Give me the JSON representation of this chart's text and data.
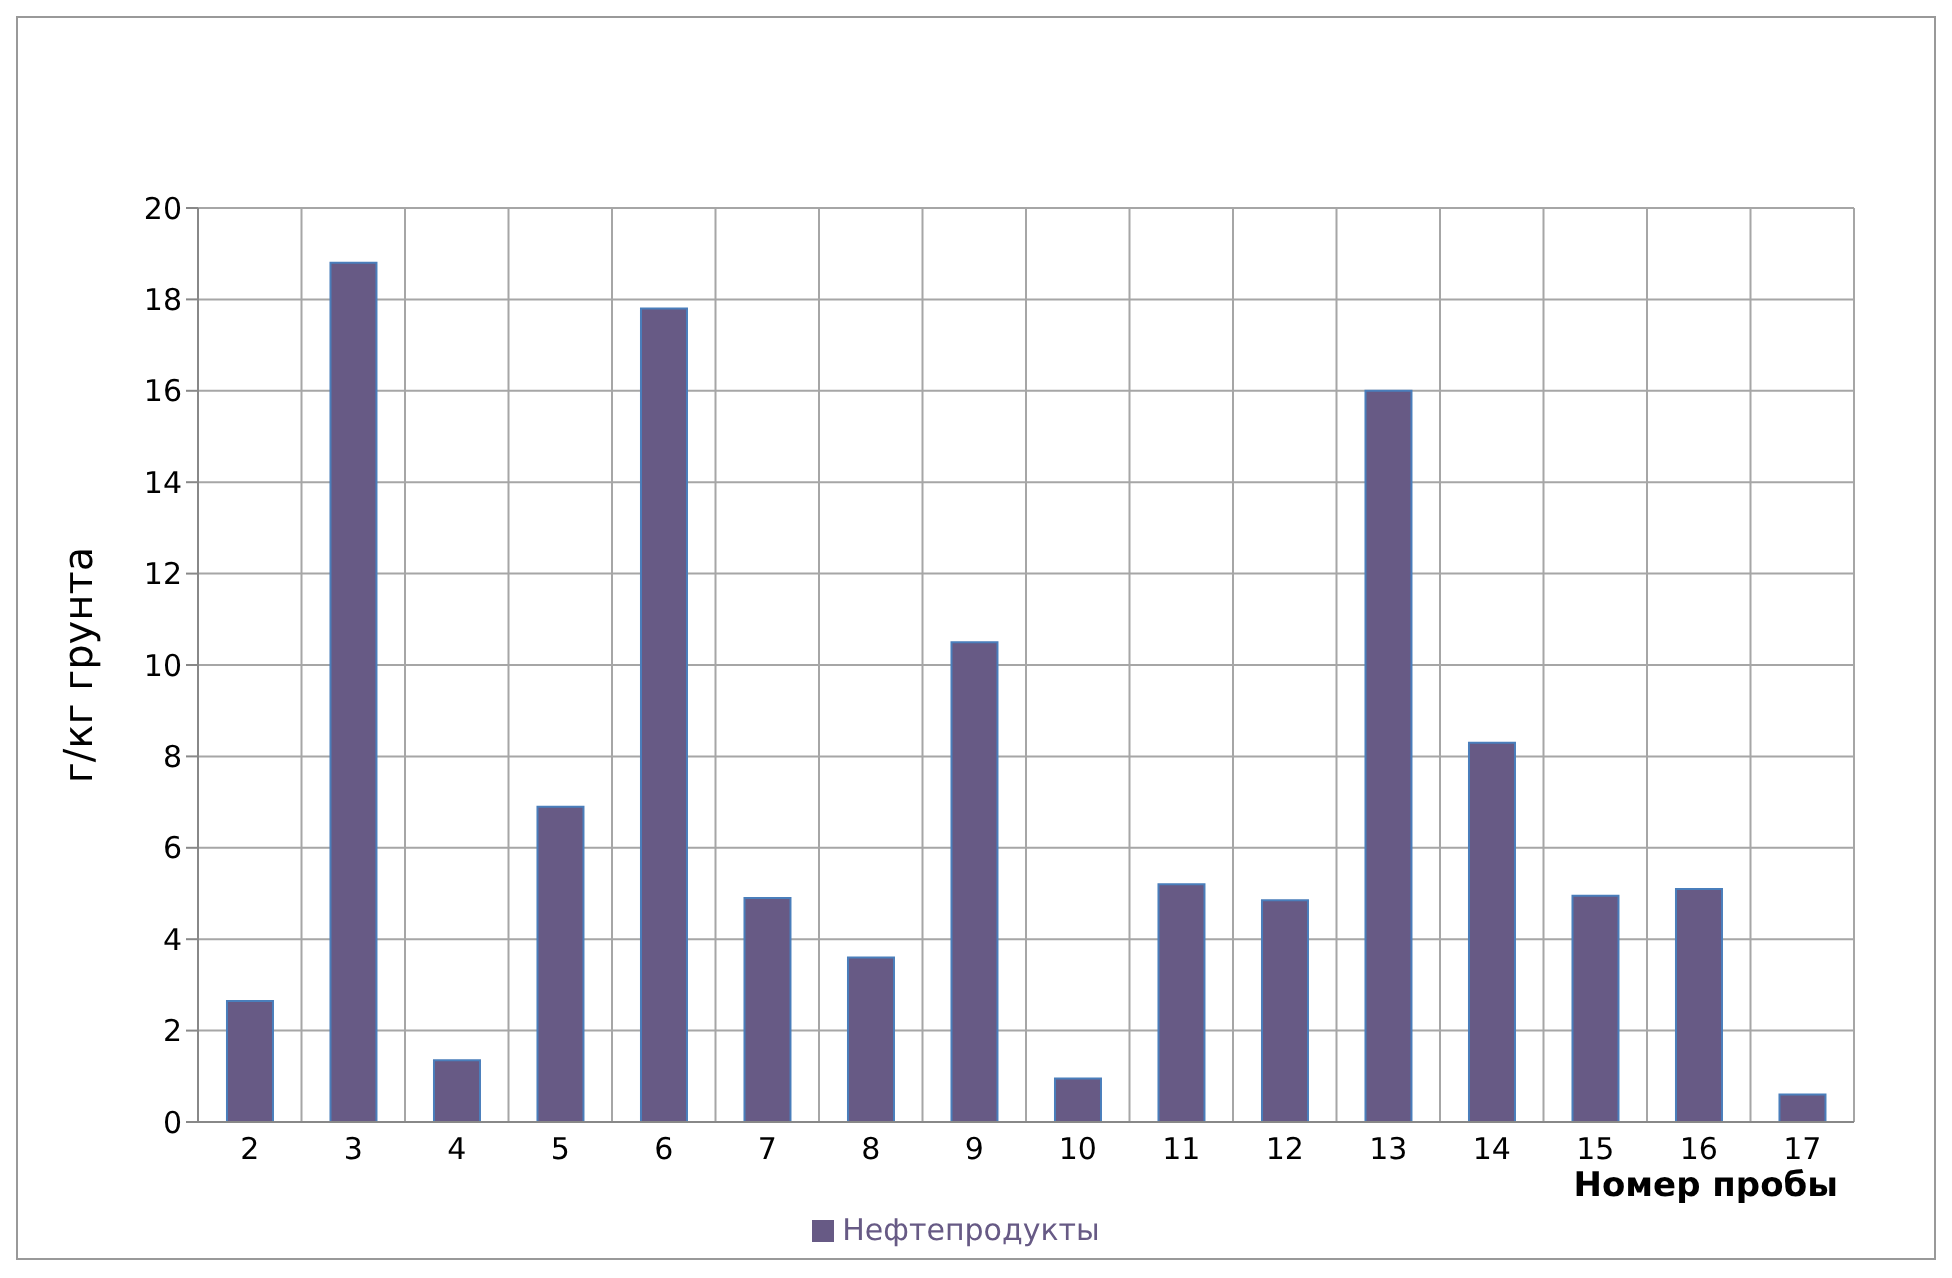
{
  "chart_data": {
    "type": "bar",
    "xlabel": "Номер пробы",
    "ylabel": "г/кг грунта",
    "categories": [
      "2",
      "3",
      "4",
      "5",
      "6",
      "7",
      "8",
      "9",
      "10",
      "11",
      "12",
      "13",
      "14",
      "15",
      "16",
      "17"
    ],
    "series": [
      {
        "name": "Нефтепродукты",
        "color": "#675a85",
        "values": [
          2.65,
          18.8,
          1.35,
          6.9,
          17.8,
          4.9,
          3.6,
          10.5,
          0.95,
          5.2,
          4.85,
          16.0,
          8.3,
          4.95,
          5.1,
          0.6
        ]
      }
    ],
    "ylim": [
      0,
      20
    ],
    "yticks": [
      0,
      2,
      4,
      6,
      8,
      10,
      12,
      14,
      16,
      18,
      20
    ],
    "grid": true,
    "legend": "bottom"
  }
}
